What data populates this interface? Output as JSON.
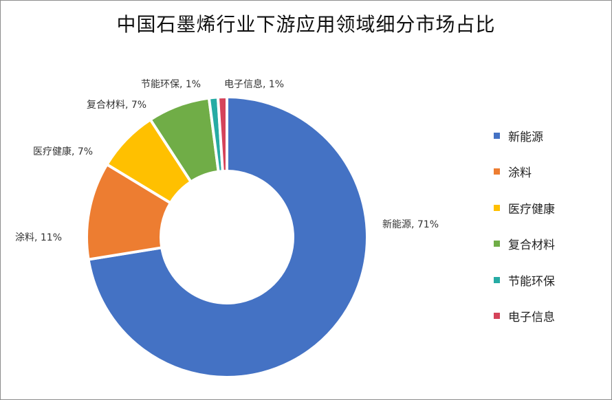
{
  "chart_data": {
    "type": "pie",
    "title": "中国石墨烯行业下游应用领域细分市场占比",
    "donut": true,
    "legend_position": "right",
    "slices": [
      {
        "name": "新能源",
        "value": 71,
        "label": "新能源, 71%",
        "color": "#4472C4"
      },
      {
        "name": "涂料",
        "value": 11,
        "label": "涂料, 11%",
        "color": "#ED7D31"
      },
      {
        "name": "医疗健康",
        "value": 7,
        "label": "医疗健康, 7%",
        "color": "#FFC000"
      },
      {
        "name": "复合材料",
        "value": 7,
        "label": "复合材料, 7%",
        "color": "#70AD47"
      },
      {
        "name": "节能环保",
        "value": 1,
        "label": "节能环保, 1%",
        "color": "#26ABA4"
      },
      {
        "name": "电子信息",
        "value": 1,
        "label": "电子信息, 1%",
        "color": "#D5435A"
      }
    ]
  }
}
